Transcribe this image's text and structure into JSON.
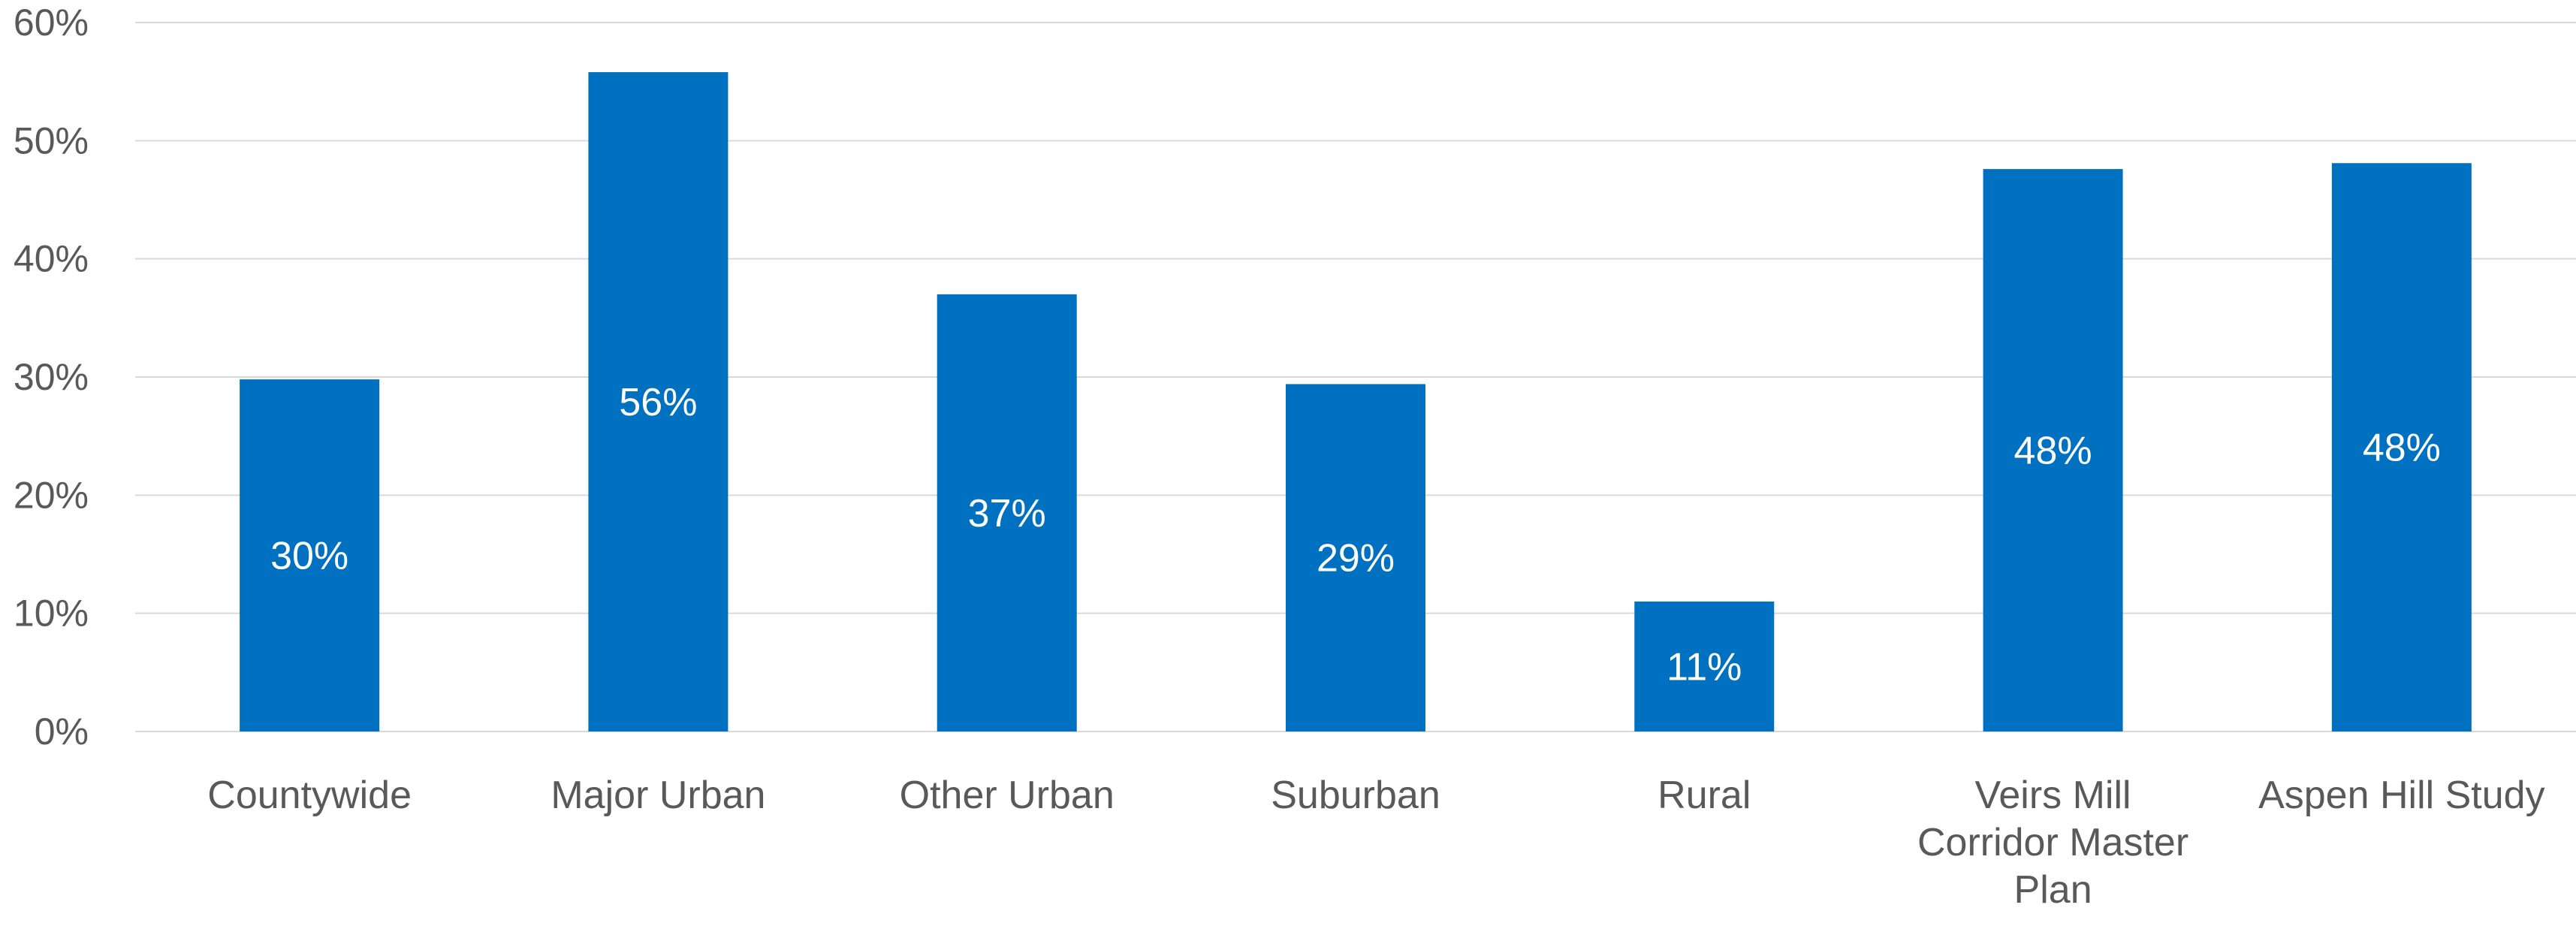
{
  "chart_data": {
    "type": "bar",
    "categories": [
      "Countywide",
      "Major Urban",
      "Other Urban",
      "Suburban",
      "Rural",
      "Veirs Mill Corridor Master Plan",
      "Aspen Hill Study"
    ],
    "category_lines": [
      [
        "Countywide"
      ],
      [
        "Major Urban"
      ],
      [
        "Other Urban"
      ],
      [
        "Suburban"
      ],
      [
        "Rural"
      ],
      [
        "Veirs Mill",
        "Corridor Master",
        "Plan"
      ],
      [
        "Aspen Hill Study"
      ]
    ],
    "values": [
      29.8,
      55.8,
      37.0,
      29.4,
      11.0,
      47.6,
      48.1
    ],
    "data_labels": [
      "30%",
      "56%",
      "37%",
      "29%",
      "11%",
      "48%",
      "48%"
    ],
    "y_ticks": [
      "0%",
      "10%",
      "20%",
      "30%",
      "40%",
      "50%",
      "60%"
    ],
    "y_tick_values": [
      0,
      10,
      20,
      30,
      40,
      50,
      60
    ],
    "ylim": [
      0,
      60
    ],
    "title": "",
    "xlabel": "",
    "ylabel": "",
    "grid": true,
    "legend": "none",
    "bar_color": "#0070c0",
    "grid_color": "#d9d9d9",
    "text_color": "#595959"
  }
}
